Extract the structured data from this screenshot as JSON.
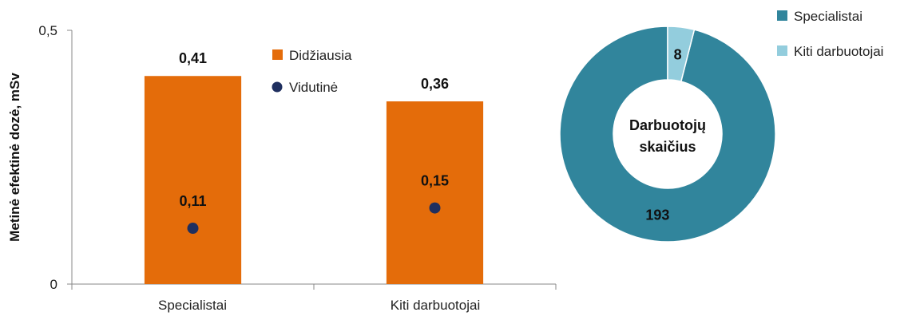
{
  "chart_data": [
    {
      "type": "bar",
      "categories": [
        "Specialistai",
        "Kiti darbuotojai"
      ],
      "series": [
        {
          "name": "Didžiausia",
          "values": [
            0.41,
            0.36
          ],
          "labels": [
            "0,41",
            "0,36"
          ],
          "color": "#E46C0A"
        },
        {
          "name": "Vidutinė",
          "values": [
            0.11,
            0.15
          ],
          "labels": [
            "0,11",
            "0,15"
          ],
          "color": "#1F2F5F",
          "marker": "circle"
        }
      ],
      "ylabel": "Metinė efektinė dozė, mSv",
      "ylim": [
        0,
        0.5
      ],
      "yticks": [
        0,
        0.5
      ],
      "ytick_labels": [
        "0",
        "0,5"
      ],
      "grid": false,
      "legend": "inside-top-center"
    },
    {
      "type": "pie",
      "style": "donut",
      "center_label": [
        "Darbuotojų",
        "skaičius"
      ],
      "slices": [
        {
          "name": "Specialistai",
          "value": 193,
          "label": "193",
          "color": "#31859C"
        },
        {
          "name": "Kiti darbuotojai",
          "value": 8,
          "label": "8",
          "color": "#93CDDD"
        }
      ],
      "legend": "top-right"
    }
  ]
}
